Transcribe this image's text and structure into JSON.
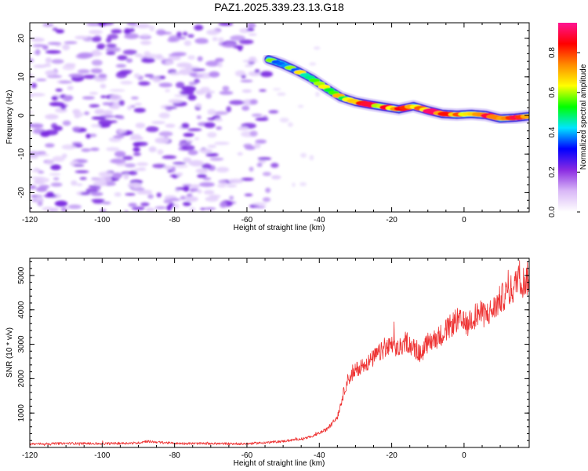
{
  "title": "PAZ1.2025.339.23.13.G18",
  "chart_data": [
    {
      "type": "heatmap",
      "name": "spectrogram",
      "xlabel": "Height of straight line (km)",
      "ylabel": "Frequency (Hz)",
      "xlim": [
        -120,
        18
      ],
      "ylim": [
        -25,
        24
      ],
      "xticks": [
        "-120",
        "-100",
        "-80",
        "-60",
        "-40",
        "-20",
        "0"
      ],
      "xtick_values": [
        -120,
        -100,
        -80,
        -60,
        -40,
        -20,
        0
      ],
      "yticks": [
        "-20",
        "-10",
        "0",
        "10",
        "20"
      ],
      "ytick_values": [
        -20,
        -10,
        0,
        10,
        20
      ],
      "noise_region": {
        "x_from": -120,
        "x_to": -53,
        "y_from": -25,
        "y_to": 24
      },
      "ridge": {
        "x": [
          -54,
          -50,
          -46,
          -42,
          -38,
          -34,
          -30,
          -26,
          -22,
          -18,
          -14,
          -10,
          -6,
          -2,
          2,
          6,
          10,
          14,
          18
        ],
        "y": [
          14.5,
          13.2,
          11.5,
          9.5,
          7,
          4.7,
          3.5,
          2.8,
          2.2,
          1.6,
          2.4,
          1.3,
          0.4,
          0.2,
          0.4,
          0.1,
          -0.8,
          -0.6,
          -0.2
        ],
        "amplitude": [
          0.55,
          0.6,
          0.62,
          0.65,
          0.72,
          0.78,
          0.82,
          0.88,
          0.9,
          0.85,
          0.88,
          0.9,
          0.92,
          0.9,
          0.93,
          0.91,
          0.95,
          0.9,
          0.88
        ]
      },
      "colorbar": {
        "label": "Normalized spectral amplitude",
        "range": [
          0,
          0.95
        ],
        "ticks": [
          "0.0",
          "0.2",
          "0.4",
          "0.6",
          "0.8"
        ],
        "tick_values": [
          0,
          0.2,
          0.4,
          0.6,
          0.8
        ],
        "colors": [
          "#ffffff",
          "#d9b8f7",
          "#8a2be2",
          "#0000ff",
          "#00e5ff",
          "#00ff00",
          "#ffff00",
          "#ff8c00",
          "#ff0000",
          "#ff1493"
        ]
      }
    },
    {
      "type": "line",
      "name": "snr",
      "xlabel": "Height of straight line (km)",
      "ylabel": "SNR (10 * v/v)",
      "xlim": [
        -120,
        18
      ],
      "ylim": [
        0,
        5500
      ],
      "xticks": [
        "-120",
        "-100",
        "-80",
        "-60",
        "-40",
        "-20",
        "0"
      ],
      "xtick_values": [
        -120,
        -100,
        -80,
        -60,
        -40,
        -20,
        0
      ],
      "yticks": [
        "1000",
        "2000",
        "3000",
        "4000",
        "5000"
      ],
      "ytick_values": [
        1000,
        2000,
        3000,
        4000,
        5000
      ],
      "color": "#ee3333",
      "x": [
        -120,
        -110,
        -100,
        -90,
        -88,
        -80,
        -70,
        -60,
        -55,
        -50,
        -45,
        -42,
        -40,
        -38,
        -36,
        -35,
        -34,
        -33,
        -32,
        -31,
        -30,
        -28,
        -26,
        -24,
        -22,
        -20,
        -18,
        -16,
        -14,
        -12,
        -10,
        -8,
        -6,
        -4,
        -2,
        0,
        2,
        4,
        6,
        8,
        10,
        12,
        14,
        15,
        16,
        17,
        18
      ],
      "y": [
        100,
        120,
        110,
        130,
        180,
        120,
        110,
        110,
        140,
        180,
        250,
        320,
        420,
        520,
        750,
        900,
        1300,
        1700,
        2000,
        2100,
        2250,
        2400,
        2500,
        2700,
        2850,
        2950,
        2850,
        3100,
        2900,
        2700,
        3050,
        3150,
        3300,
        3500,
        3700,
        3600,
        3750,
        3900,
        3850,
        4000,
        4300,
        4500,
        4650,
        5100,
        4800,
        4850,
        4950
      ]
    }
  ]
}
